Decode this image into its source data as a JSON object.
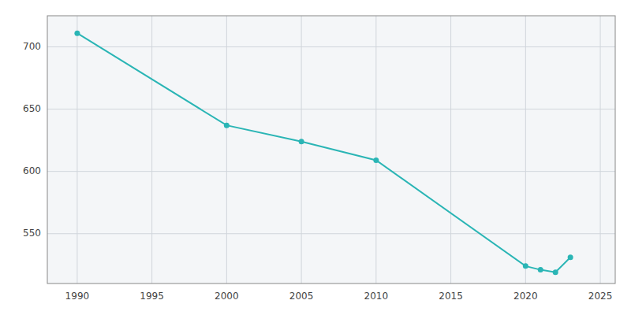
{
  "chart_data": {
    "type": "line",
    "x": [
      1990,
      2000,
      2005,
      2010,
      2020,
      2021,
      2022,
      2023
    ],
    "values": [
      711,
      637,
      624,
      609,
      524,
      521,
      519,
      531
    ],
    "color": "#2ab5b5",
    "marker": "o",
    "xlim": [
      1988,
      2026
    ],
    "ylim": [
      510,
      725
    ],
    "xticks": [
      1990,
      1995,
      2000,
      2005,
      2010,
      2015,
      2020,
      2025
    ],
    "yticks": [
      550,
      600,
      650,
      700
    ],
    "grid": true
  }
}
